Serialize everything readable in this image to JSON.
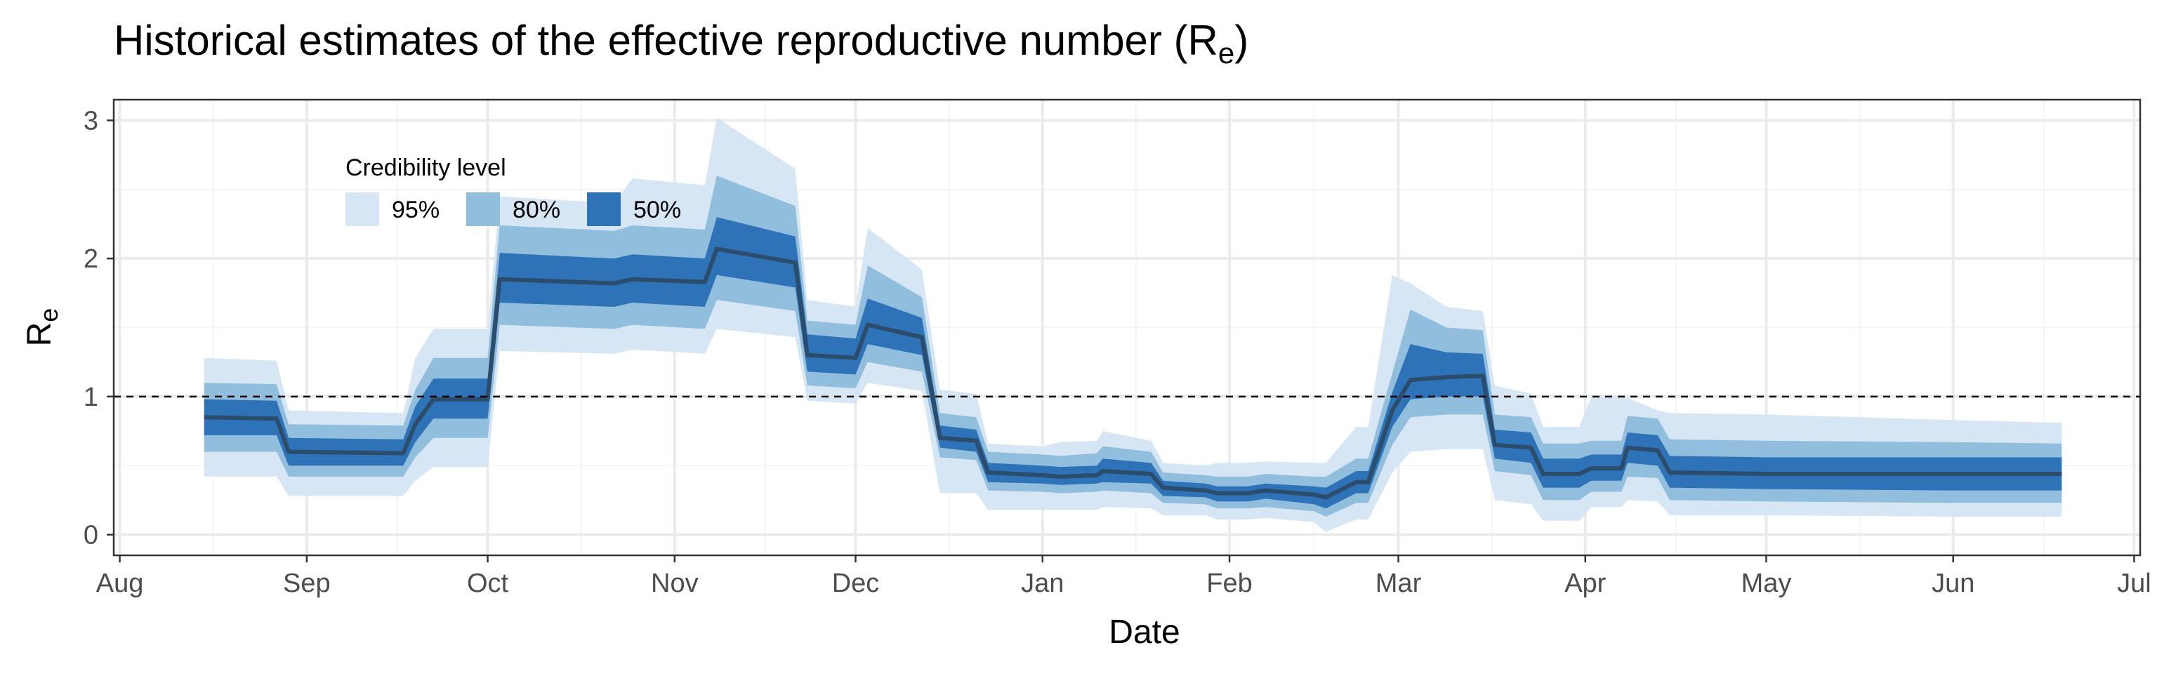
{
  "chart_data": {
    "type": "area",
    "title": "Historical estimates of the effective reproductive number (R",
    "title_subscript": "e",
    "title_suffix": ")",
    "xlabel": "Date",
    "ylabel": "R",
    "ylabel_subscript": "e",
    "x_tick_labels": [
      "Aug",
      "Sep",
      "Oct",
      "Nov",
      "Dec",
      "Jan",
      "Feb",
      "Mar",
      "Apr",
      "May",
      "Jun",
      "Jul"
    ],
    "x_tick_dates": [
      "2020-08-01",
      "2020-09-01",
      "2020-10-01",
      "2020-11-01",
      "2020-12-01",
      "2021-01-01",
      "2021-02-01",
      "2021-03-01",
      "2021-04-01",
      "2021-05-01",
      "2021-06-01",
      "2021-07-01"
    ],
    "xlim": [
      "2020-07-31",
      "2021-07-02"
    ],
    "y_ticks": [
      0,
      1,
      2,
      3
    ],
    "ylim": [
      -0.15,
      3.15
    ],
    "grid": true,
    "reference_line": 1,
    "legend": {
      "title": "Credibility level",
      "placement": "top-left",
      "items": [
        {
          "label": "95%",
          "color": "#d6e6f4"
        },
        {
          "label": "80%",
          "color": "#92bedd"
        },
        {
          "label": "50%",
          "color": "#2e72b8"
        }
      ]
    },
    "colors": {
      "ci95": "#d6e6f4",
      "ci80": "#92bedd",
      "ci50": "#2e72b8",
      "median": "#2b4c6b",
      "reference": "#000000",
      "grid_major": "#ebebeb",
      "grid_minor": "#f4f4f4"
    },
    "x": [
      "2020-08-15",
      "2020-08-27",
      "2020-08-29",
      "2020-09-17",
      "2020-09-19",
      "2020-09-22",
      "2020-10-01",
      "2020-10-03",
      "2020-10-22",
      "2020-10-25",
      "2020-11-06",
      "2020-11-08",
      "2020-11-21",
      "2020-11-23",
      "2020-12-01",
      "2020-12-03",
      "2020-12-12",
      "2020-12-15",
      "2020-12-21",
      "2020-12-23",
      "2021-01-01",
      "2021-01-04",
      "2021-01-10",
      "2021-01-11",
      "2021-01-19",
      "2021-01-21",
      "2021-01-28",
      "2021-01-30",
      "2021-02-04",
      "2021-02-07",
      "2021-02-15",
      "2021-02-17",
      "2021-02-22",
      "2021-02-24",
      "2021-02-28",
      "2021-03-03",
      "2021-03-09",
      "2021-03-15",
      "2021-03-17",
      "2021-03-23",
      "2021-03-25",
      "2021-03-31",
      "2021-04-02",
      "2021-04-07",
      "2021-04-08",
      "2021-04-13",
      "2021-04-15",
      "2021-05-01",
      "2021-06-01",
      "2021-06-19"
    ],
    "median": [
      0.85,
      0.84,
      0.6,
      0.59,
      0.8,
      0.98,
      0.98,
      1.85,
      1.82,
      1.85,
      1.83,
      2.07,
      1.97,
      1.3,
      1.28,
      1.52,
      1.43,
      0.7,
      0.68,
      0.45,
      0.43,
      0.42,
      0.43,
      0.46,
      0.44,
      0.34,
      0.32,
      0.3,
      0.3,
      0.32,
      0.29,
      0.27,
      0.38,
      0.38,
      0.9,
      1.12,
      1.14,
      1.15,
      0.65,
      0.63,
      0.44,
      0.44,
      0.48,
      0.48,
      0.63,
      0.61,
      0.45,
      0.44,
      0.44,
      0.44
    ],
    "ci50_low": [
      0.72,
      0.72,
      0.5,
      0.5,
      0.67,
      0.84,
      0.84,
      1.68,
      1.65,
      1.68,
      1.65,
      1.88,
      1.79,
      1.18,
      1.16,
      1.38,
      1.3,
      0.63,
      0.6,
      0.38,
      0.37,
      0.36,
      0.37,
      0.38,
      0.37,
      0.28,
      0.27,
      0.24,
      0.24,
      0.26,
      0.22,
      0.19,
      0.3,
      0.3,
      0.78,
      0.98,
      1.0,
      1.0,
      0.55,
      0.52,
      0.34,
      0.34,
      0.39,
      0.39,
      0.52,
      0.5,
      0.34,
      0.33,
      0.32,
      0.32
    ],
    "ci50_high": [
      0.98,
      0.97,
      0.7,
      0.69,
      0.93,
      1.13,
      1.13,
      2.04,
      2.0,
      2.03,
      2.0,
      2.3,
      2.16,
      1.45,
      1.42,
      1.71,
      1.57,
      0.79,
      0.76,
      0.52,
      0.5,
      0.49,
      0.5,
      0.55,
      0.52,
      0.39,
      0.37,
      0.35,
      0.35,
      0.37,
      0.35,
      0.34,
      0.46,
      0.46,
      1.03,
      1.38,
      1.32,
      1.31,
      0.76,
      0.74,
      0.55,
      0.55,
      0.58,
      0.58,
      0.74,
      0.72,
      0.57,
      0.56,
      0.56,
      0.56
    ],
    "ci80_low": [
      0.6,
      0.6,
      0.42,
      0.42,
      0.56,
      0.7,
      0.7,
      1.52,
      1.49,
      1.52,
      1.49,
      1.7,
      1.62,
      1.08,
      1.06,
      1.25,
      1.18,
      0.56,
      0.54,
      0.32,
      0.31,
      0.3,
      0.31,
      0.32,
      0.3,
      0.23,
      0.22,
      0.19,
      0.19,
      0.2,
      0.17,
      0.13,
      0.23,
      0.23,
      0.65,
      0.85,
      0.87,
      0.87,
      0.46,
      0.43,
      0.25,
      0.25,
      0.31,
      0.31,
      0.42,
      0.41,
      0.25,
      0.24,
      0.23,
      0.23
    ],
    "ci80_high": [
      1.1,
      1.09,
      0.8,
      0.79,
      1.05,
      1.28,
      1.28,
      2.24,
      2.2,
      2.24,
      2.21,
      2.6,
      2.38,
      1.55,
      1.52,
      1.95,
      1.72,
      0.88,
      0.85,
      0.6,
      0.58,
      0.57,
      0.59,
      0.64,
      0.6,
      0.45,
      0.43,
      0.42,
      0.42,
      0.44,
      0.42,
      0.42,
      0.55,
      0.55,
      1.17,
      1.63,
      1.5,
      1.48,
      0.87,
      0.85,
      0.66,
      0.66,
      0.68,
      0.68,
      0.86,
      0.84,
      0.69,
      0.68,
      0.67,
      0.66
    ],
    "ci95_low": [
      0.42,
      0.42,
      0.28,
      0.28,
      0.39,
      0.49,
      0.49,
      1.33,
      1.31,
      1.34,
      1.31,
      1.49,
      1.43,
      0.97,
      0.95,
      1.1,
      1.04,
      0.3,
      0.3,
      0.18,
      0.18,
      0.18,
      0.18,
      0.2,
      0.19,
      0.14,
      0.14,
      0.11,
      0.11,
      0.12,
      0.09,
      0.02,
      0.11,
      0.11,
      0.45,
      0.6,
      0.62,
      0.62,
      0.25,
      0.22,
      0.1,
      0.1,
      0.2,
      0.2,
      0.25,
      0.24,
      0.14,
      0.14,
      0.13,
      0.13
    ],
    "ci95_high": [
      1.28,
      1.26,
      0.9,
      0.88,
      1.28,
      1.49,
      1.49,
      2.45,
      2.4,
      2.58,
      2.53,
      3.02,
      2.65,
      1.7,
      1.65,
      2.22,
      1.92,
      1.05,
      1.02,
      0.66,
      0.64,
      0.67,
      0.68,
      0.75,
      0.68,
      0.52,
      0.5,
      0.52,
      0.52,
      0.53,
      0.52,
      0.52,
      0.78,
      0.78,
      1.88,
      1.82,
      1.65,
      1.62,
      1.08,
      1.02,
      0.78,
      0.78,
      1.0,
      1.0,
      0.99,
      0.9,
      0.88,
      0.87,
      0.83,
      0.81
    ]
  }
}
